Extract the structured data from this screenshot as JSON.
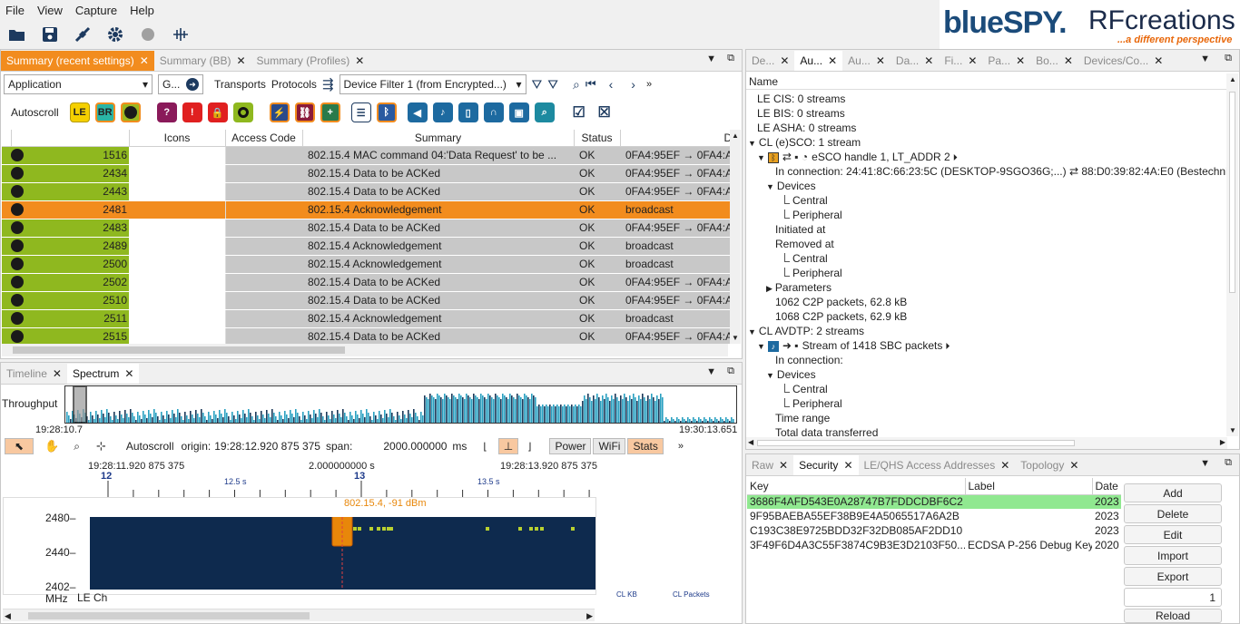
{
  "menu": [
    "File",
    "View",
    "Capture",
    "Help"
  ],
  "logo": {
    "brand_a": "blueSPY.",
    "brand_b": "RFcreations",
    "tagline": "...a different perspective"
  },
  "summary_pane": {
    "tabs": [
      {
        "label": "Summary (recent settings)",
        "active": true
      },
      {
        "label": "Summary (BB)",
        "active": false
      },
      {
        "label": "Summary (Profiles)",
        "active": false
      }
    ],
    "filter": {
      "level": "Application",
      "goto": "G...",
      "transports": "Transports",
      "protocols": "Protocols",
      "device_filter": "Device Filter 1 (from Encrypted...)"
    },
    "autoscroll_label": "Autoscroll",
    "chips": [
      "LE",
      "BR"
    ],
    "columns": [
      "Icons",
      "Access Code",
      "Summary",
      "Status",
      "Devi"
    ],
    "rows": [
      {
        "num": "1516",
        "summary": "802.15.4 MAC command 04:'Data Request' to be ...",
        "status": "OK",
        "device": "0FA4:95EF → 0FA4:A",
        "selected": false
      },
      {
        "num": "2434",
        "summary": "802.15.4 Data to be ACKed",
        "status": "OK",
        "device": "0FA4:95EF → 0FA4:A",
        "selected": false
      },
      {
        "num": "2443",
        "summary": "802.15.4 Data to be ACKed",
        "status": "OK",
        "device": "0FA4:95EF → 0FA4:A",
        "selected": false
      },
      {
        "num": "2481",
        "summary": "802.15.4 Acknowledgement",
        "status": "OK",
        "device": "broadcast",
        "selected": true
      },
      {
        "num": "2483",
        "summary": "802.15.4 Data to be ACKed",
        "status": "OK",
        "device": "0FA4:95EF → 0FA4:A",
        "selected": false
      },
      {
        "num": "2489",
        "summary": "802.15.4 Acknowledgement",
        "status": "OK",
        "device": "broadcast",
        "selected": false
      },
      {
        "num": "2500",
        "summary": "802.15.4 Acknowledgement",
        "status": "OK",
        "device": "broadcast",
        "selected": false
      },
      {
        "num": "2502",
        "summary": "802.15.4 Data to be ACKed",
        "status": "OK",
        "device": "0FA4:95EF → 0FA4:A",
        "selected": false
      },
      {
        "num": "2510",
        "summary": "802.15.4 Data to be ACKed",
        "status": "OK",
        "device": "0FA4:95EF → 0FA4:A",
        "selected": false
      },
      {
        "num": "2511",
        "summary": "802.15.4 Acknowledgement",
        "status": "OK",
        "device": "broadcast",
        "selected": false
      },
      {
        "num": "2515",
        "summary": "802.15.4 Data to be ACKed",
        "status": "OK",
        "device": "0FA4:95EF → 0FA4:A",
        "selected": false
      }
    ]
  },
  "spectrum_pane": {
    "tabs": [
      {
        "label": "Timeline",
        "active": false
      },
      {
        "label": "Spectrum",
        "active": true
      }
    ],
    "throughput_label": "Throughput",
    "overview_start": "19:28:10.7",
    "overview_end": "19:30:13.651",
    "autoscroll_label": "Autoscroll",
    "origin_label": "origin:",
    "origin_value": "19:28:12.920 875 375",
    "span_label": "span:",
    "span_value": "2000.000000",
    "span_unit": "ms",
    "toggles": [
      "Power",
      "WiFi",
      "Stats"
    ],
    "ruler": {
      "left_time": "19:28:11.920 875 375",
      "mid_time": "2.000000000 s",
      "right_time": "19:28:13.920 875 375",
      "major": [
        "12",
        "13"
      ],
      "minor": [
        "12.5 s",
        "13.5 s"
      ]
    },
    "marker_label": "802.15.4, -91 dBm",
    "y_ticks": [
      "2480–",
      "2440–",
      "2402–"
    ],
    "y_unit": "MHz",
    "x_unit": "LE Ch",
    "stats_labels": [
      "CL KB",
      "CL Packets"
    ]
  },
  "audio_pane": {
    "tabs": [
      {
        "label": "De...",
        "active": false
      },
      {
        "label": "Au...",
        "active": true
      },
      {
        "label": "Au...",
        "active": false
      },
      {
        "label": "Da...",
        "active": false
      },
      {
        "label": "Fi...",
        "active": false
      },
      {
        "label": "Pa...",
        "active": false
      },
      {
        "label": "Bo...",
        "active": false
      },
      {
        "label": "Devices/Co...",
        "active": false
      }
    ],
    "header": "Name",
    "tree": [
      {
        "text": "LE CIS: 0 streams",
        "indent": 0,
        "arrow": ""
      },
      {
        "text": "LE BIS: 0 streams",
        "indent": 0,
        "arrow": ""
      },
      {
        "text": "LE ASHA: 0 streams",
        "indent": 0,
        "arrow": ""
      },
      {
        "text": "CL (e)SCO: 1 stream",
        "indent": 0,
        "arrow": "down"
      },
      {
        "text": "eSCO handle 1, LT_ADDR 2",
        "indent": 1,
        "arrow": "down"
      },
      {
        "text": "In connection: 24:41:8C:66:23:5C (DESKTOP-9SGO36G;...) ⇄ 88:D0:39:82:4A:E0 (Bestechnic",
        "indent": 2,
        "arrow": ""
      },
      {
        "text": "Devices",
        "indent": 2,
        "arrow": "down"
      },
      {
        "text": "Central",
        "indent": 3,
        "arrow": ""
      },
      {
        "text": "Peripheral",
        "indent": 3,
        "arrow": ""
      },
      {
        "text": "Initiated at",
        "indent": 2,
        "arrow": ""
      },
      {
        "text": "Removed at",
        "indent": 2,
        "arrow": ""
      },
      {
        "text": "Central",
        "indent": 3,
        "arrow": ""
      },
      {
        "text": "Peripheral",
        "indent": 3,
        "arrow": ""
      },
      {
        "text": "Parameters",
        "indent": 2,
        "arrow": "right"
      },
      {
        "text": "1062 C2P packets, 62.8 kB",
        "indent": 2,
        "arrow": ""
      },
      {
        "text": "1068 C2P packets, 62.9 kB",
        "indent": 2,
        "arrow": ""
      },
      {
        "text": "CL AVDTP: 2 streams",
        "indent": 0,
        "arrow": "down"
      },
      {
        "text": "Stream of 1418 SBC packets",
        "indent": 1,
        "arrow": "down"
      },
      {
        "text": "In connection:",
        "indent": 2,
        "arrow": ""
      },
      {
        "text": "Devices",
        "indent": 2,
        "arrow": "down"
      },
      {
        "text": "Central",
        "indent": 3,
        "arrow": ""
      },
      {
        "text": "Peripheral",
        "indent": 3,
        "arrow": ""
      },
      {
        "text": "Time range",
        "indent": 2,
        "arrow": ""
      },
      {
        "text": "Total data transferred",
        "indent": 2,
        "arrow": ""
      }
    ]
  },
  "security_pane": {
    "tabs": [
      {
        "label": "Raw",
        "active": false
      },
      {
        "label": "Security",
        "active": true
      },
      {
        "label": "LE/QHS Access Addresses",
        "active": false
      },
      {
        "label": "Topology",
        "active": false
      }
    ],
    "columns": [
      "Key",
      "Label",
      "Date"
    ],
    "rows": [
      {
        "key": "3686F4AFD543E0A28747B7FDDCDBF6C2",
        "label": "",
        "date": "2023",
        "highlight": true
      },
      {
        "key": "9F95BAEBA55EF38B9E4A5065517A6A2B",
        "label": "",
        "date": "2023",
        "highlight": false
      },
      {
        "key": "C193C38E9725BDD32F32DB085AF2DD10",
        "label": "",
        "date": "2023",
        "highlight": false
      },
      {
        "key": "3F49F6D4A3C55F3874C9B3E3D2103F50...",
        "label": "ECDSA P-256 Debug Key",
        "date": "2020",
        "highlight": false
      }
    ],
    "buttons": [
      "Add",
      "Delete",
      "Edit",
      "Import",
      "Export"
    ],
    "spin_value": "1",
    "reload": "Reload"
  }
}
